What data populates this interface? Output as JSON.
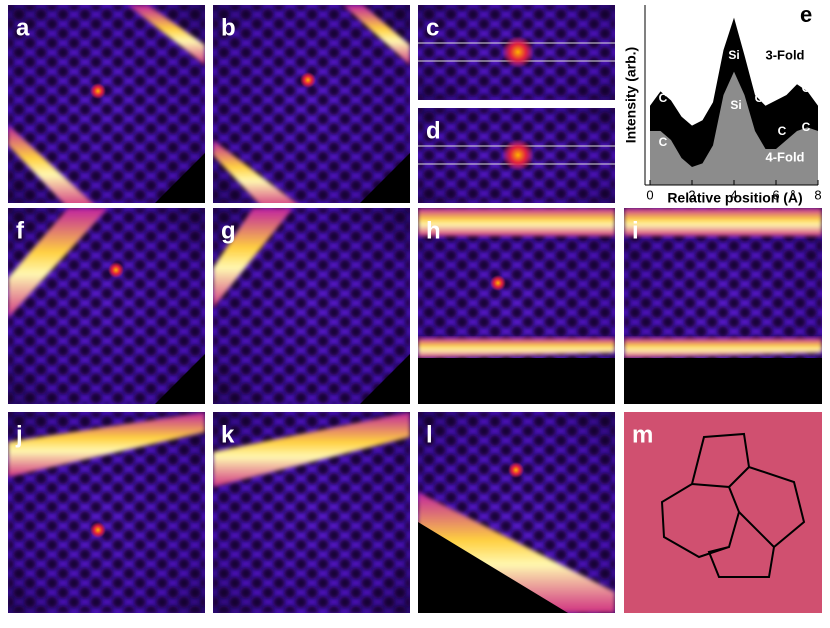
{
  "panels": [
    "a",
    "b",
    "c",
    "d",
    "f",
    "g",
    "h",
    "i",
    "j",
    "k",
    "l",
    "m"
  ],
  "chart_data": {
    "type": "area",
    "panel_label": "e",
    "x_label": "Relative position (Å)",
    "y_label": "Intensity (arb.)",
    "x": [
      0,
      0.5,
      1,
      1.5,
      2,
      2.5,
      3,
      3.5,
      4,
      4.5,
      5,
      5.5,
      6,
      6.5,
      7,
      7.5,
      8
    ],
    "series": [
      {
        "name": "3-Fold",
        "color": "#000000",
        "values": [
          0.44,
          0.52,
          0.47,
          0.38,
          0.33,
          0.36,
          0.46,
          0.75,
          0.93,
          0.72,
          0.5,
          0.44,
          0.47,
          0.5,
          0.56,
          0.52,
          0.44
        ]
      },
      {
        "name": "4-Fold",
        "color": "#8c8c8c",
        "values": [
          0.3,
          0.3,
          0.25,
          0.15,
          0.1,
          0.12,
          0.22,
          0.5,
          0.63,
          0.5,
          0.3,
          0.2,
          0.2,
          0.25,
          0.3,
          0.32,
          0.3
        ]
      }
    ],
    "annotations": [
      "Si",
      "Si",
      "C",
      "C",
      "C",
      "C",
      "C",
      "C"
    ],
    "xlim": [
      0,
      8
    ],
    "ylim": [
      0,
      1
    ],
    "xticks": [
      0,
      2,
      4,
      6,
      8
    ]
  }
}
